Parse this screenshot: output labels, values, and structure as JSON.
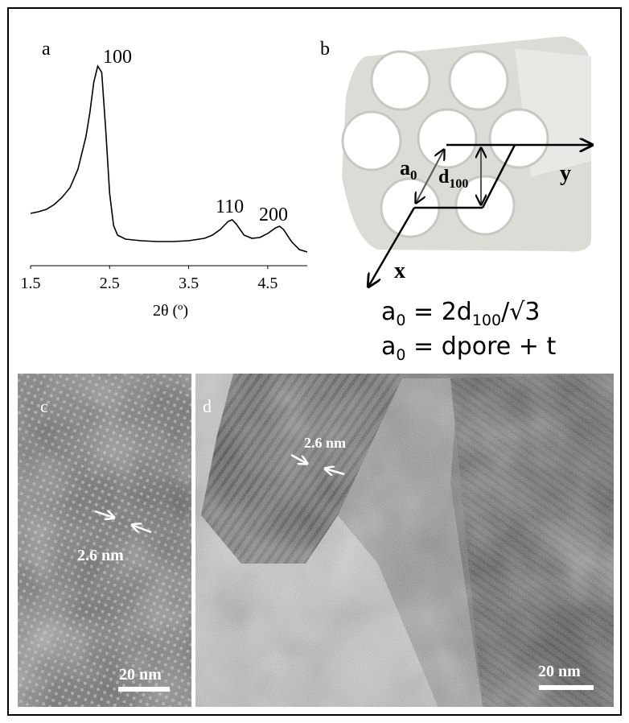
{
  "chart_data": {
    "type": "line",
    "panel_label": "a",
    "xlabel": "2θ (º)",
    "color": "#000000",
    "x": [
      1.5,
      1.6,
      1.7,
      1.8,
      1.9,
      2.0,
      2.1,
      2.2,
      2.25,
      2.3,
      2.35,
      2.4,
      2.45,
      2.5,
      2.55,
      2.6,
      2.7,
      2.9,
      3.1,
      3.3,
      3.5,
      3.7,
      3.8,
      3.9,
      4.0,
      4.05,
      4.1,
      4.2,
      4.3,
      4.4,
      4.5,
      4.6,
      4.65,
      4.7,
      4.8,
      4.9,
      5.0
    ],
    "values": [
      65,
      67,
      70,
      76,
      85,
      97,
      120,
      160,
      190,
      228,
      248,
      240,
      170,
      90,
      50,
      38,
      33,
      31,
      30,
      30,
      31,
      34,
      38,
      45,
      55,
      57,
      52,
      38,
      34,
      35,
      40,
      47,
      49,
      45,
      30,
      20,
      17
    ],
    "xlim": [
      1.5,
      5.0
    ],
    "ylim": [
      0,
      260
    ],
    "xticks": [
      1.5,
      2.5,
      3.5,
      4.5
    ],
    "annotations": [
      "100",
      "110",
      "200"
    ]
  },
  "diagram": {
    "panel_label": "b",
    "a0": {
      "base": "a",
      "sub": "0"
    },
    "d100": {
      "base": "d",
      "sub": "100"
    },
    "x_axis": "x",
    "y_axis": "y",
    "equations": [
      [
        "a",
        "0",
        " =  2d",
        "100",
        "/√3"
      ],
      [
        "a",
        "0",
        " =  dpore + t"
      ]
    ]
  },
  "images": [
    {
      "panel_label": "c",
      "spacing_label": "2.6 nm",
      "scale_bar": "20 nm"
    },
    {
      "panel_label": "d",
      "spacing_label": "2.6 nm",
      "scale_bar": "20 nm"
    }
  ]
}
